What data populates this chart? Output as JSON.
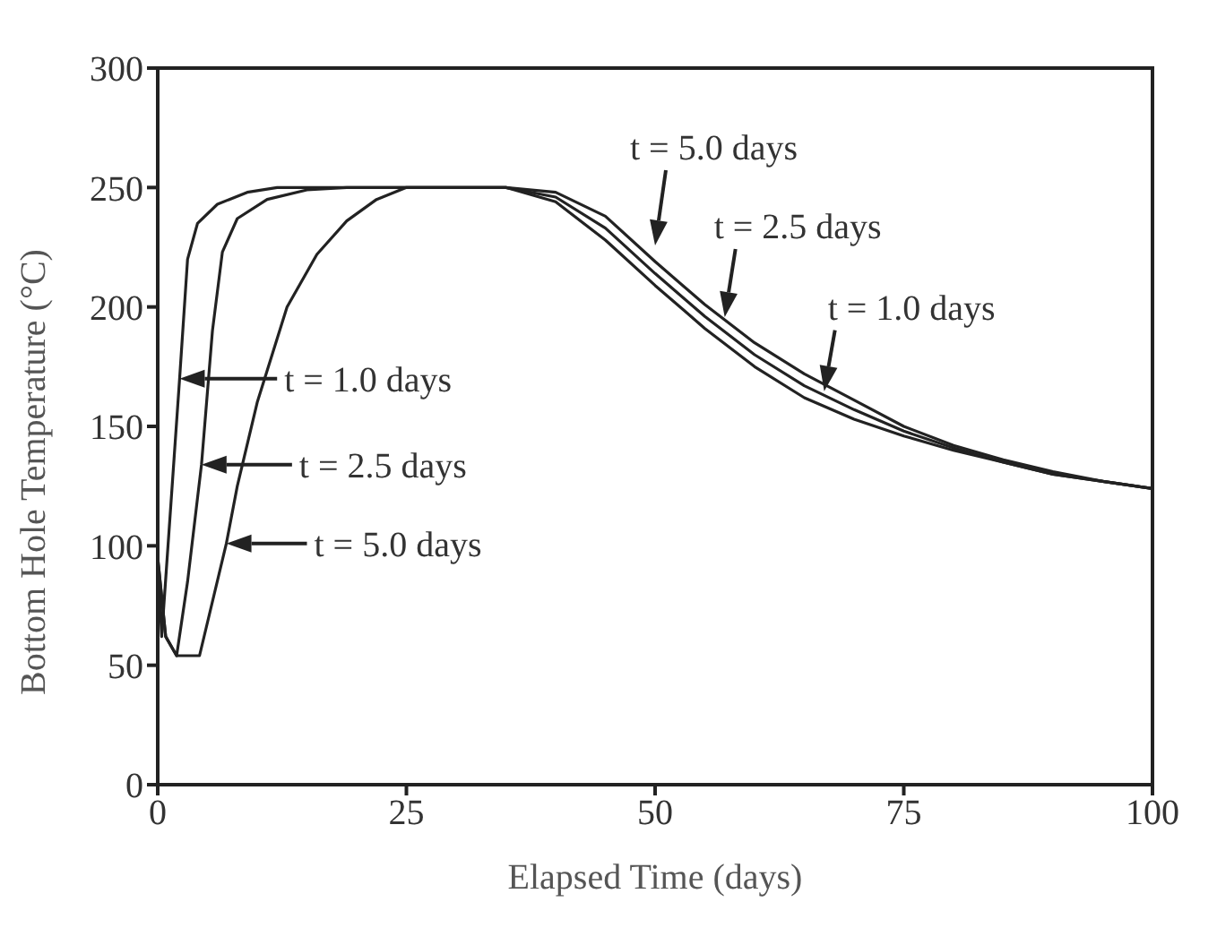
{
  "chart_data": {
    "type": "line",
    "xlabel": "Elapsed Time (days)",
    "ylabel": "Bottom Hole Temperature (°C)",
    "xlim": [
      0,
      100
    ],
    "xticks": [
      0,
      25,
      50,
      75,
      100
    ],
    "ylim": [
      0,
      300
    ],
    "yticks": [
      0,
      50,
      100,
      150,
      200,
      250,
      300
    ],
    "grid": false,
    "legend": false,
    "marker": "none",
    "line_style": "solid",
    "series": [
      {
        "color": "#222222",
        "x": [
          0,
          0.4,
          1.2,
          2.2,
          3,
          4,
          6,
          9,
          12,
          35,
          40,
          45,
          50,
          55,
          60,
          65,
          70,
          75,
          80,
          85,
          90,
          95,
          100
        ],
        "values": [
          95,
          62,
          110,
          170,
          220,
          235,
          243,
          248,
          250,
          250,
          244,
          228,
          209,
          191,
          175,
          162,
          153,
          146,
          140,
          135,
          130,
          127,
          124
        ]
      },
      {
        "color": "#222222",
        "x": [
          0,
          0.8,
          1.9,
          3,
          4.4,
          5.5,
          6.5,
          8,
          11,
          15,
          19,
          35,
          40,
          45,
          50,
          55,
          60,
          65,
          70,
          75,
          80,
          85,
          90,
          95,
          100
        ],
        "values": [
          95,
          62,
          54,
          85,
          134,
          190,
          223,
          237,
          245,
          249,
          250,
          250,
          246,
          233,
          214,
          196,
          180,
          167,
          157,
          148,
          141,
          135,
          130,
          127,
          124
        ]
      },
      {
        "color": "#222222",
        "x": [
          0,
          0.8,
          1.9,
          4.2,
          6.9,
          8,
          10,
          13,
          16,
          19,
          22,
          25,
          35,
          40,
          45,
          50,
          55,
          60,
          65,
          70,
          75,
          80,
          85,
          90,
          95,
          100
        ],
        "values": [
          95,
          62,
          54,
          54,
          101,
          125,
          160,
          200,
          222,
          236,
          245,
          250,
          250,
          248,
          238,
          219,
          201,
          185,
          172,
          161,
          150,
          142,
          136,
          131,
          127,
          124
        ]
      }
    ],
    "annotations": [
      {
        "text": "t = 1.0 days",
        "x": 2.2,
        "y": 170
      },
      {
        "text": "t = 2.5 days",
        "x": 4.4,
        "y": 134
      },
      {
        "text": "t = 5.0 days",
        "x": 6.9,
        "y": 101
      },
      {
        "text": "t = 5.0 days",
        "x": 50,
        "y": 219
      },
      {
        "text": "t = 2.5 days",
        "x": 57,
        "y": 189
      },
      {
        "text": "t = 1.0 days",
        "x": 67,
        "y": 158
      }
    ]
  }
}
